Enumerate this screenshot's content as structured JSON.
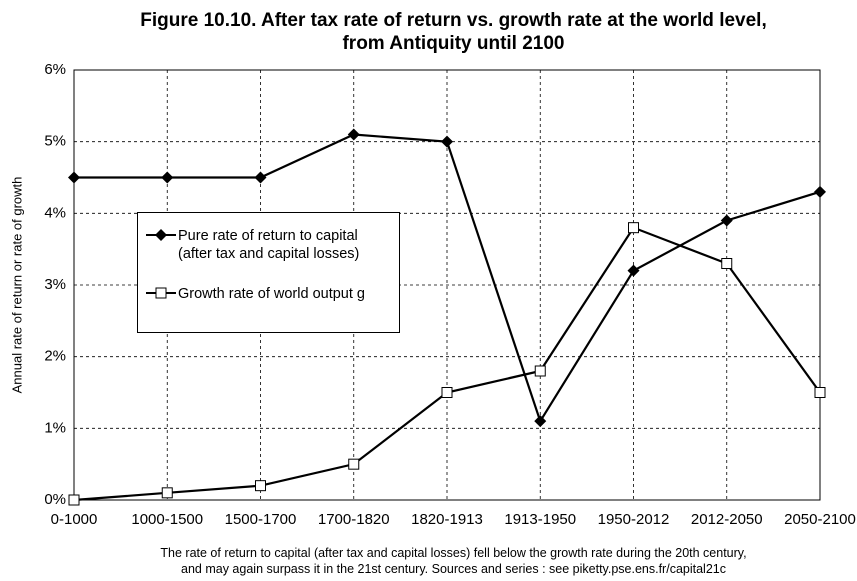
{
  "chart_data": {
    "type": "line",
    "title": [
      "Figure 10.10. After tax rate of return vs. growth rate at the world level,",
      "from Antiquity until 2100"
    ],
    "y_label": "Annual rate of return or rate of growth",
    "note": [
      "The rate of return to capital (after tax and capital losses) fell below the growth rate during the 20th century,",
      "and may again surpass it in the 21st century. Sources and series : see piketty.pse.ens.fr/capital21c"
    ],
    "categories": [
      "0-1000",
      "1000-1500",
      "1500-1700",
      "1700-1820",
      "1820-1913",
      "1913-1950",
      "1950-2012",
      "2012-2050",
      "2050-2100"
    ],
    "series": [
      {
        "name": "Pure rate of return to capital (after tax and capital losses)",
        "color": "#000000",
        "marker": "diamond",
        "values": [
          4.5,
          4.5,
          4.5,
          5.1,
          5.0,
          1.1,
          3.2,
          3.9,
          4.3
        ]
      },
      {
        "name": "Growth rate of world output g",
        "color": "#000000",
        "marker": "square",
        "values": [
          0.0,
          0.1,
          0.2,
          0.5,
          1.5,
          1.8,
          3.8,
          3.3,
          1.5
        ]
      }
    ],
    "ylim": [
      0,
      6
    ],
    "yticks": [
      {
        "value": 0,
        "label": "0%"
      },
      {
        "value": 1,
        "label": "1%"
      },
      {
        "value": 2,
        "label": "2%"
      },
      {
        "value": 3,
        "label": "3%"
      },
      {
        "value": 4,
        "label": "4%"
      },
      {
        "value": 5,
        "label": "5%"
      },
      {
        "value": 6,
        "label": "6%"
      }
    ],
    "grid": true
  }
}
